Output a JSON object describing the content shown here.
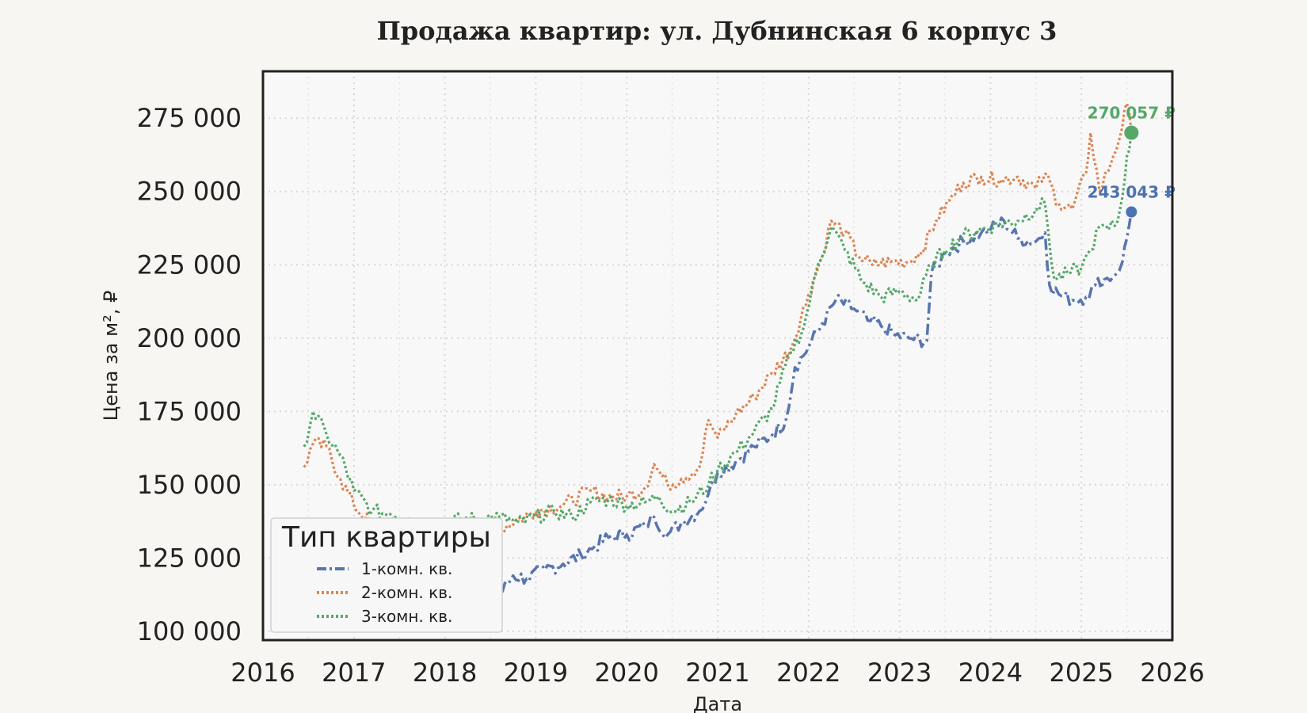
{
  "chart_data": {
    "type": "line",
    "title": "Продажа квартир: ул. Дубнинская 6 корпус 3",
    "xlabel": "Дата",
    "ylabel": "Цена за м², ₽",
    "xlim": [
      2016,
      2026
    ],
    "ylim": [
      97000,
      291000
    ],
    "x_ticks": [
      "2016",
      "2017",
      "2018",
      "2019",
      "2020",
      "2021",
      "2022",
      "2023",
      "2024",
      "2025",
      "2026"
    ],
    "y_ticks": [
      "100 000",
      "125 000",
      "150 000",
      "175 000",
      "200 000",
      "225 000",
      "250 000",
      "275 000"
    ],
    "grid": true,
    "legend": {
      "title": "Тип квартиры",
      "placement": "lower-left"
    },
    "series": [
      {
        "name": "1-комн. кв.",
        "color": "#5875b0",
        "style": "dashdot",
        "points": [
          [
            2016.45,
            120000
          ],
          [
            2016.6,
            121000
          ],
          [
            2016.9,
            118000
          ],
          [
            2017.2,
            116000
          ],
          [
            2017.5,
            115000
          ],
          [
            2017.8,
            114000
          ],
          [
            2018.1,
            111000
          ],
          [
            2018.4,
            108000
          ],
          [
            2018.6,
            112000
          ],
          [
            2018.75,
            119000
          ],
          [
            2018.9,
            118000
          ],
          [
            2019.1,
            121000
          ],
          [
            2019.3,
            123000
          ],
          [
            2019.5,
            126000
          ],
          [
            2019.65,
            129000
          ],
          [
            2019.8,
            132000
          ],
          [
            2020.0,
            133000
          ],
          [
            2020.2,
            136000
          ],
          [
            2020.3,
            139000
          ],
          [
            2020.45,
            133000
          ],
          [
            2020.6,
            137000
          ],
          [
            2020.8,
            141000
          ],
          [
            2020.9,
            147000
          ],
          [
            2021.0,
            154000
          ],
          [
            2021.2,
            158000
          ],
          [
            2021.4,
            163000
          ],
          [
            2021.6,
            167000
          ],
          [
            2021.75,
            172000
          ],
          [
            2021.85,
            190000
          ],
          [
            2022.0,
            197000
          ],
          [
            2022.15,
            205000
          ],
          [
            2022.3,
            213000
          ],
          [
            2022.5,
            210000
          ],
          [
            2022.65,
            206000
          ],
          [
            2022.8,
            204000
          ],
          [
            2022.95,
            201000
          ],
          [
            2023.1,
            200000
          ],
          [
            2023.3,
            199000
          ],
          [
            2023.35,
            222000
          ],
          [
            2023.5,
            229000
          ],
          [
            2023.7,
            233000
          ],
          [
            2023.9,
            236000
          ],
          [
            2024.0,
            237000
          ],
          [
            2024.15,
            240000
          ],
          [
            2024.3,
            234000
          ],
          [
            2024.5,
            233000
          ],
          [
            2024.6,
            236000
          ],
          [
            2024.65,
            218000
          ],
          [
            2024.75,
            215000
          ],
          [
            2024.9,
            213000
          ],
          [
            2025.05,
            214000
          ],
          [
            2025.15,
            218000
          ],
          [
            2025.25,
            220000
          ],
          [
            2025.35,
            221000
          ],
          [
            2025.45,
            226000
          ],
          [
            2025.5,
            234000
          ],
          [
            2025.55,
            243043
          ]
        ]
      },
      {
        "name": "2-комн. кв.",
        "color": "#dd8452",
        "style": "dotted",
        "points": [
          [
            2016.45,
            156000
          ],
          [
            2016.55,
            164000
          ],
          [
            2016.7,
            163000
          ],
          [
            2016.85,
            152000
          ],
          [
            2017.0,
            143000
          ],
          [
            2017.2,
            136000
          ],
          [
            2017.4,
            135000
          ],
          [
            2017.6,
            134000
          ],
          [
            2017.8,
            133000
          ],
          [
            2018.0,
            133000
          ],
          [
            2018.2,
            133000
          ],
          [
            2018.4,
            134000
          ],
          [
            2018.6,
            135000
          ],
          [
            2018.8,
            138000
          ],
          [
            2019.0,
            141000
          ],
          [
            2019.3,
            143000
          ],
          [
            2019.6,
            148000
          ],
          [
            2019.8,
            146000
          ],
          [
            2020.0,
            146000
          ],
          [
            2020.2,
            149000
          ],
          [
            2020.3,
            157000
          ],
          [
            2020.45,
            150000
          ],
          [
            2020.6,
            152000
          ],
          [
            2020.8,
            156000
          ],
          [
            2020.9,
            172000
          ],
          [
            2021.0,
            166000
          ],
          [
            2021.2,
            174000
          ],
          [
            2021.4,
            180000
          ],
          [
            2021.6,
            188000
          ],
          [
            2021.8,
            196000
          ],
          [
            2022.0,
            215000
          ],
          [
            2022.15,
            228000
          ],
          [
            2022.25,
            240000
          ],
          [
            2022.4,
            236000
          ],
          [
            2022.55,
            228000
          ],
          [
            2022.7,
            225000
          ],
          [
            2022.9,
            226000
          ],
          [
            2023.1,
            226000
          ],
          [
            2023.25,
            230000
          ],
          [
            2023.4,
            240000
          ],
          [
            2023.55,
            247000
          ],
          [
            2023.7,
            253000
          ],
          [
            2023.9,
            255000
          ],
          [
            2024.1,
            254000
          ],
          [
            2024.3,
            255000
          ],
          [
            2024.5,
            251000
          ],
          [
            2024.6,
            256000
          ],
          [
            2024.75,
            246000
          ],
          [
            2024.9,
            244000
          ],
          [
            2025.05,
            256000
          ],
          [
            2025.1,
            270000
          ],
          [
            2025.2,
            250000
          ],
          [
            2025.35,
            262000
          ],
          [
            2025.45,
            272000
          ],
          [
            2025.5,
            280000
          ],
          [
            2025.55,
            270057
          ]
        ]
      },
      {
        "name": "3-комн. кв.",
        "color": "#55a868",
        "style": "dotted",
        "points": [
          [
            2016.45,
            163000
          ],
          [
            2016.55,
            175000
          ],
          [
            2016.7,
            167000
          ],
          [
            2016.85,
            160000
          ],
          [
            2017.0,
            148000
          ],
          [
            2017.2,
            141000
          ],
          [
            2017.4,
            140000
          ],
          [
            2017.6,
            139000
          ],
          [
            2017.75,
            137000
          ],
          [
            2018.6,
            139000
          ],
          [
            2018.8,
            137000
          ],
          [
            2019.0,
            139000
          ],
          [
            2019.2,
            141000
          ],
          [
            2019.4,
            139000
          ],
          [
            2019.6,
            144000
          ],
          [
            2019.8,
            145000
          ],
          [
            2020.0,
            143000
          ],
          [
            2020.2,
            144000
          ],
          [
            2020.35,
            146000
          ],
          [
            2020.5,
            141000
          ],
          [
            2020.7,
            144000
          ],
          [
            2020.9,
            150000
          ],
          [
            2021.0,
            155000
          ],
          [
            2021.2,
            161000
          ],
          [
            2021.4,
            168000
          ],
          [
            2021.6,
            176000
          ],
          [
            2021.8,
            195000
          ],
          [
            2021.95,
            204000
          ],
          [
            2022.1,
            225000
          ],
          [
            2022.25,
            238000
          ],
          [
            2022.4,
            230000
          ],
          [
            2022.6,
            219000
          ],
          [
            2022.8,
            214000
          ],
          [
            2023.0,
            216000
          ],
          [
            2023.2,
            213000
          ],
          [
            2023.35,
            225000
          ],
          [
            2023.5,
            230000
          ],
          [
            2023.7,
            235000
          ],
          [
            2023.9,
            237000
          ],
          [
            2024.1,
            239000
          ],
          [
            2024.3,
            240000
          ],
          [
            2024.5,
            244000
          ],
          [
            2024.6,
            246000
          ],
          [
            2024.7,
            220000
          ],
          [
            2024.85,
            222000
          ],
          [
            2025.0,
            224000
          ],
          [
            2025.1,
            230000
          ],
          [
            2025.2,
            238000
          ],
          [
            2025.3,
            237000
          ],
          [
            2025.4,
            240000
          ],
          [
            2025.45,
            248000
          ],
          [
            2025.5,
            262000
          ],
          [
            2025.55,
            270057
          ]
        ]
      }
    ],
    "annotations": [
      {
        "text": "243 043 ₽",
        "x": 2025.55,
        "y": 243043,
        "color": "#4c72b0"
      },
      {
        "text": "270 057 ₽",
        "x": 2025.55,
        "y": 270057,
        "color": "#55a868"
      }
    ]
  }
}
